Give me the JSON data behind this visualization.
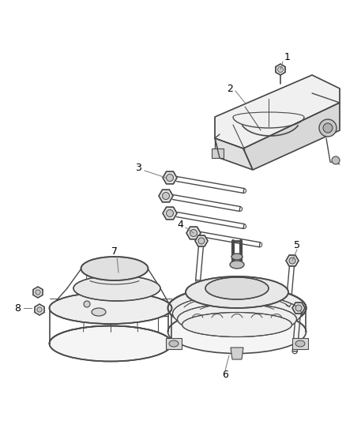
{
  "background_color": "#ffffff",
  "figsize": [
    4.38,
    5.33
  ],
  "dpi": 100,
  "line_color": "#4a4a4a",
  "label_color": "#000000",
  "label_fontsize": 9
}
